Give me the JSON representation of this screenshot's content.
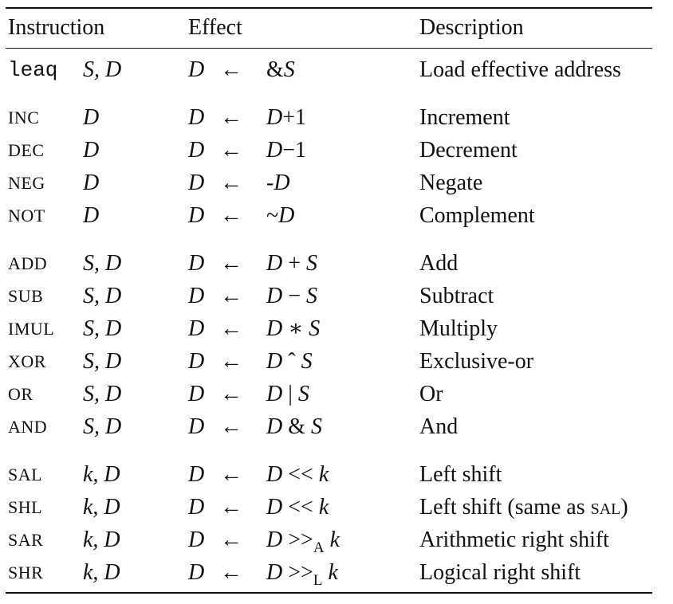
{
  "headers": {
    "instruction": "Instruction",
    "effect": "Effect",
    "description": "Description"
  },
  "rows": [
    {
      "op": "leaq",
      "args": "S, D",
      "dst": "D",
      "arrow": "←",
      "expr_a": "&",
      "expr_b": "S",
      "expr_c": "",
      "expr_d": "",
      "desc": "Load effective address"
    },
    {
      "op": "INC",
      "args": "D",
      "dst": "D",
      "arrow": "←",
      "expr_a": "D",
      "expr_b": "+1",
      "expr_c": "",
      "expr_d": "",
      "desc": "Increment"
    },
    {
      "op": "DEC",
      "args": "D",
      "dst": "D",
      "arrow": "←",
      "expr_a": "D",
      "expr_b": "−1",
      "expr_c": "",
      "expr_d": "",
      "desc": "Decrement"
    },
    {
      "op": "NEG",
      "args": "D",
      "dst": "D",
      "arrow": "←",
      "expr_a": "-",
      "expr_b": "D",
      "expr_c": "",
      "expr_d": "",
      "desc": "Negate"
    },
    {
      "op": "NOT",
      "args": "D",
      "dst": "D",
      "arrow": "←",
      "expr_a": "~",
      "expr_b": "D",
      "expr_c": "",
      "expr_d": "",
      "desc": "Complement"
    },
    {
      "op": "ADD",
      "args": "S, D",
      "dst": "D",
      "arrow": "←",
      "expr_a": "D",
      "expr_b": " + ",
      "expr_c": "S",
      "expr_d": "",
      "desc": "Add"
    },
    {
      "op": "SUB",
      "args": "S, D",
      "dst": "D",
      "arrow": "←",
      "expr_a": "D",
      "expr_b": " − ",
      "expr_c": "S",
      "expr_d": "",
      "desc": "Subtract"
    },
    {
      "op": "IMUL",
      "args": "S, D",
      "dst": "D",
      "arrow": "←",
      "expr_a": "D",
      "expr_b": " ∗ ",
      "expr_c": "S",
      "expr_d": "",
      "desc": "Multiply"
    },
    {
      "op": "XOR",
      "args": "S, D",
      "dst": "D",
      "arrow": "←",
      "expr_a": "D",
      "expr_b": " ˆ ",
      "expr_c": "S",
      "expr_d": "",
      "desc": "Exclusive-or"
    },
    {
      "op": "OR",
      "args": "S, D",
      "dst": "D",
      "arrow": "←",
      "expr_a": "D",
      "expr_b": " | ",
      "expr_c": "S",
      "expr_d": "",
      "desc": "Or"
    },
    {
      "op": "AND",
      "args": "S, D",
      "dst": "D",
      "arrow": "←",
      "expr_a": "D",
      "expr_b": " & ",
      "expr_c": "S",
      "expr_d": "",
      "desc": "And"
    },
    {
      "op": "SAL",
      "args": "k, D",
      "dst": "D",
      "arrow": "←",
      "expr_a": "D",
      "expr_b": " << ",
      "expr_c": "k",
      "expr_d": "",
      "desc": "Left shift"
    },
    {
      "op": "SHL",
      "args": "k, D",
      "dst": "D",
      "arrow": "←",
      "expr_a": "D",
      "expr_b": " << ",
      "expr_c": "k",
      "expr_d": "",
      "desc": "Left shift (same as SAL)"
    },
    {
      "op": "SAR",
      "args": "k, D",
      "dst": "D",
      "arrow": "←",
      "expr_a": "D",
      "expr_b": " >>",
      "expr_c": "k",
      "expr_d": "A",
      "desc": "Arithmetic right shift"
    },
    {
      "op": "SHR",
      "args": "k, D",
      "dst": "D",
      "arrow": "←",
      "expr_a": "D",
      "expr_b": " >>",
      "expr_c": "k",
      "expr_d": "L",
      "desc": "Logical right shift"
    }
  ]
}
